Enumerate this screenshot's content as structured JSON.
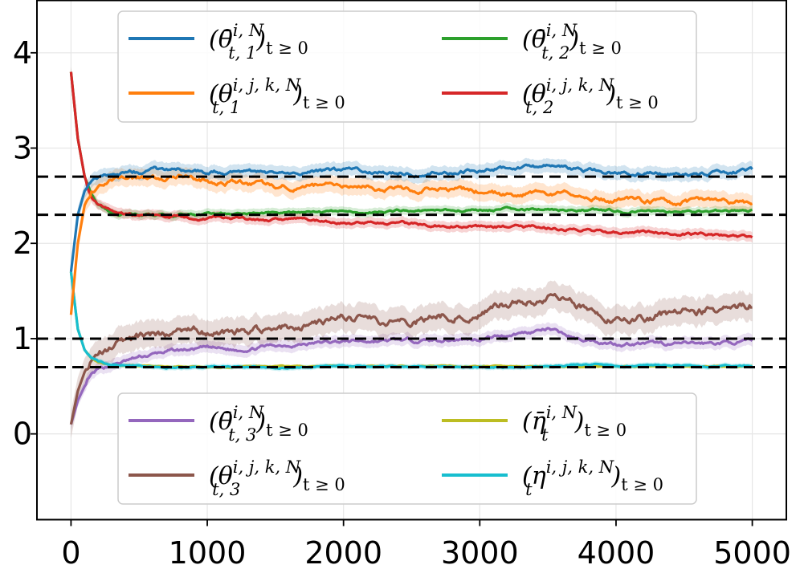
{
  "chart_data": {
    "type": "line",
    "title": "",
    "xlabel": "",
    "ylabel": "",
    "xlim": [
      -250,
      5250
    ],
    "ylim": [
      -0.9,
      4.55
    ],
    "grid": true,
    "xticks": [
      0,
      1000,
      2000,
      3000,
      4000,
      5000
    ],
    "xtick_labels": [
      "0",
      "1000",
      "2000",
      "3000",
      "4000",
      "5000"
    ],
    "yticks": [
      0,
      1,
      2,
      3,
      4
    ],
    "ytick_labels": [
      "0",
      "1",
      "2",
      "3",
      "4"
    ],
    "reference_lines": [
      2.7,
      2.3,
      1.0,
      0.7
    ],
    "reference_line_color": "#000000",
    "series": [
      {
        "name": "theta_bar_1",
        "legend": "(θ̄ᵢ,ᴺ t,1)t≥0",
        "color": "#1f77b4",
        "x": [
          0,
          50,
          100,
          150,
          200,
          300,
          400,
          500,
          700,
          800,
          1000,
          1200,
          1500,
          2000,
          2500,
          3000,
          3500,
          4000,
          4500,
          5000
        ],
        "y": [
          1.7,
          2.3,
          2.55,
          2.65,
          2.7,
          2.72,
          2.74,
          2.75,
          2.77,
          2.78,
          2.74,
          2.76,
          2.73,
          2.76,
          2.74,
          2.77,
          2.8,
          2.74,
          2.72,
          2.76
        ],
        "band": 0.08
      },
      {
        "name": "theta_bar_2",
        "legend": "(θ̄ᵢ,ᴺ t,2)t≥0",
        "color": "#2ca02c",
        "x": [
          0,
          50,
          100,
          150,
          200,
          300,
          400,
          500,
          700,
          1000,
          1500,
          2000,
          2500,
          3000,
          3500,
          4000,
          4500,
          5000
        ],
        "y": [
          3.8,
          3.1,
          2.7,
          2.5,
          2.4,
          2.33,
          2.31,
          2.3,
          2.3,
          2.31,
          2.32,
          2.33,
          2.34,
          2.35,
          2.36,
          2.34,
          2.33,
          2.34
        ],
        "band": 0.05
      },
      {
        "name": "theta_ijk_1",
        "legend": "(θᵢ,ⱼ,ₖ,ᴺ t,1)t≥0",
        "color": "#ff7f0e",
        "x": [
          0,
          50,
          100,
          150,
          200,
          300,
          500,
          800,
          1000,
          1500,
          2000,
          2500,
          3000,
          3200,
          3500,
          4000,
          4500,
          5000
        ],
        "y": [
          1.25,
          2.0,
          2.4,
          2.55,
          2.6,
          2.66,
          2.68,
          2.7,
          2.65,
          2.6,
          2.62,
          2.57,
          2.55,
          2.5,
          2.53,
          2.45,
          2.43,
          2.43
        ],
        "band": 0.1
      },
      {
        "name": "theta_ijk_2",
        "legend": "(θᵢ,ⱼ,ₖ,ᴺ t,2)t≥0",
        "color": "#d62728",
        "x": [
          0,
          50,
          100,
          150,
          200,
          300,
          400,
          500,
          700,
          1000,
          1500,
          2000,
          2500,
          3000,
          3500,
          4000,
          4500,
          5000
        ],
        "y": [
          3.8,
          3.1,
          2.7,
          2.5,
          2.4,
          2.33,
          2.3,
          2.29,
          2.28,
          2.27,
          2.25,
          2.22,
          2.2,
          2.18,
          2.16,
          2.12,
          2.1,
          2.06
        ],
        "band": 0.06
      },
      {
        "name": "theta_bar_3",
        "legend": "(θ̄ᵢ,ᴺ t,3)t≥0",
        "color": "#9467bd",
        "x": [
          0,
          50,
          100,
          150,
          200,
          300,
          500,
          700,
          1000,
          1200,
          1500,
          2000,
          2500,
          3000,
          3500,
          3700,
          4000,
          4500,
          5000
        ],
        "y": [
          0.1,
          0.35,
          0.5,
          0.6,
          0.66,
          0.72,
          0.8,
          0.86,
          0.9,
          0.88,
          0.93,
          0.97,
          0.98,
          1.0,
          1.1,
          1.0,
          0.95,
          0.94,
          0.97
        ],
        "band": 0.07
      },
      {
        "name": "theta_ijk_3",
        "legend": "(θᵢ,ⱼ,ₖ,ᴺ t,3)t≥0",
        "color": "#8c564b",
        "x": [
          0,
          50,
          100,
          150,
          200,
          300,
          500,
          700,
          900,
          1000,
          1200,
          1500,
          2000,
          2500,
          3000,
          3500,
          3800,
          4000,
          4500,
          5000
        ],
        "y": [
          0.1,
          0.45,
          0.65,
          0.78,
          0.86,
          0.93,
          1.0,
          1.05,
          1.1,
          1.05,
          1.08,
          1.1,
          1.22,
          1.18,
          1.3,
          1.43,
          1.3,
          1.2,
          1.27,
          1.35
        ],
        "band": 0.16
      },
      {
        "name": "eta_bar",
        "legend": "(η̄ᵢ,ᴺ t)t≥0",
        "color": "#bcbd22",
        "x": [
          0,
          50,
          100,
          150,
          200,
          300,
          500,
          1000,
          2000,
          3000,
          4000,
          5000
        ],
        "y": [
          1.7,
          1.1,
          0.88,
          0.8,
          0.76,
          0.72,
          0.71,
          0.7,
          0.71,
          0.71,
          0.71,
          0.71
        ],
        "band": 0.02
      },
      {
        "name": "eta_ijk",
        "legend": "(ηᵢ,ⱼ,ₖ,ᴺ t)t≥0",
        "color": "#17becf",
        "x": [
          0,
          50,
          100,
          150,
          200,
          300,
          500,
          700,
          1000,
          1500,
          2000,
          2500,
          3000,
          3500,
          3900,
          4000,
          4500,
          5000
        ],
        "y": [
          1.7,
          1.1,
          0.88,
          0.8,
          0.76,
          0.72,
          0.71,
          0.7,
          0.7,
          0.7,
          0.71,
          0.71,
          0.7,
          0.71,
          0.74,
          0.71,
          0.71,
          0.71
        ],
        "band": 0.03
      }
    ],
    "legends": [
      {
        "position": "top",
        "entries": [
          {
            "series": "theta_bar_1",
            "base": "(θ̄",
            "sup": "i, N",
            "sub": "t, 1",
            "tail": ")",
            "tailsub": "t ≥ 0"
          },
          {
            "series": "theta_bar_2",
            "base": "(θ̄",
            "sup": "i, N",
            "sub": "t, 2",
            "tail": ")",
            "tailsub": "t ≥ 0"
          },
          {
            "series": "theta_ijk_1",
            "base": "(θ",
            "sup": "i, j, k, N",
            "sub": "t, 1",
            "tail": ")",
            "tailsub": "t ≥ 0"
          },
          {
            "series": "theta_ijk_2",
            "base": "(θ",
            "sup": "i, j, k, N",
            "sub": "t, 2",
            "tail": ")",
            "tailsub": "t ≥ 0"
          }
        ]
      },
      {
        "position": "bottom",
        "entries": [
          {
            "series": "theta_bar_3",
            "base": "(θ̄",
            "sup": "i, N",
            "sub": "t, 3",
            "tail": ")",
            "tailsub": "t ≥ 0"
          },
          {
            "series": "eta_bar",
            "base": "(η̄",
            "sup": "i, N",
            "sub": "t",
            "tail": ")",
            "tailsub": "t ≥ 0"
          },
          {
            "series": "theta_ijk_3",
            "base": "(θ",
            "sup": "i, j, k, N",
            "sub": "t, 3",
            "tail": ")",
            "tailsub": "t ≥ 0"
          },
          {
            "series": "eta_ijk",
            "base": "(η",
            "sup": "i, j, k, N",
            "sub": "t",
            "tail": ")",
            "tailsub": "t ≥ 0"
          }
        ]
      }
    ]
  }
}
